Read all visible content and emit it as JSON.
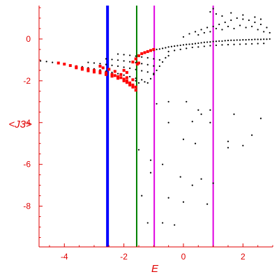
{
  "chart_data": {
    "type": "scatter",
    "title": "",
    "xlabel": "E",
    "ylabel": "<J3>",
    "xlim": [
      -4.85,
      3.0
    ],
    "ylim": [
      -9.95,
      1.6
    ],
    "x_ticks": [
      -4,
      -2,
      0,
      2
    ],
    "y_ticks": [
      0,
      -2,
      -4,
      -6,
      -8
    ],
    "x_tick_labels": [
      "-4",
      "-2",
      "0",
      "2"
    ],
    "y_tick_labels": [
      "0",
      "-2",
      "-4",
      "-6",
      "-8"
    ],
    "grid": false,
    "legend": "none",
    "colors": {
      "axis": "#e00000",
      "black_points": "#000000",
      "red_points": "#ff0000",
      "line_blue": "#0000ff",
      "line_green": "#008000",
      "line_magenta": "#e000e0"
    },
    "vertical_lines": [
      {
        "x": -2.55,
        "color": "blue"
      },
      {
        "x": -1.57,
        "color": "green"
      },
      {
        "x": -0.98,
        "color": "magenta"
      },
      {
        "x": 1.0,
        "color": "magenta"
      }
    ],
    "series": [
      {
        "color": "black",
        "points": [
          [
            -4.8,
            -1.05
          ],
          [
            -4.6,
            -1.08
          ],
          [
            -4.4,
            -1.12
          ],
          [
            -4.2,
            -1.16
          ],
          [
            -4.0,
            -1.2
          ],
          [
            -3.8,
            -1.24
          ],
          [
            -3.6,
            -1.29
          ],
          [
            -3.4,
            -1.33
          ],
          [
            -3.2,
            -1.38
          ],
          [
            -3.0,
            -1.43
          ],
          [
            -2.8,
            -1.48
          ],
          [
            -2.6,
            -1.54
          ],
          [
            -2.4,
            -1.6
          ],
          [
            -2.2,
            -1.66
          ],
          [
            -2.0,
            -1.73
          ],
          [
            -1.8,
            -1.8
          ],
          [
            -1.6,
            -1.88
          ],
          [
            -3.2,
            -1.12
          ],
          [
            -3.0,
            -1.15
          ],
          [
            -2.8,
            -1.18
          ],
          [
            -2.6,
            -1.22
          ],
          [
            -2.4,
            -1.26
          ],
          [
            -2.2,
            -1.3
          ],
          [
            -2.0,
            -1.35
          ],
          [
            -1.8,
            -1.4
          ],
          [
            -1.6,
            -1.46
          ],
          [
            -1.4,
            -1.52
          ],
          [
            -1.2,
            -1.58
          ],
          [
            -1.0,
            -1.65
          ],
          [
            -2.6,
            -0.95
          ],
          [
            -2.4,
            -0.98
          ],
          [
            -2.2,
            -1.01
          ],
          [
            -2.0,
            -1.05
          ],
          [
            -1.8,
            -1.09
          ],
          [
            -1.6,
            -1.13
          ],
          [
            -1.4,
            -1.18
          ],
          [
            -1.2,
            -1.23
          ],
          [
            -1.0,
            -1.29
          ],
          [
            -2.2,
            -0.72
          ],
          [
            -2.0,
            -0.75
          ],
          [
            -1.8,
            -0.78
          ],
          [
            -1.6,
            -0.82
          ],
          [
            -1.4,
            -0.86
          ],
          [
            -1.2,
            -0.9
          ],
          [
            -1.0,
            -0.95
          ],
          [
            -0.8,
            -1.0
          ],
          [
            -1.6,
            -2.0
          ],
          [
            -1.5,
            -2.1
          ],
          [
            -1.4,
            -1.95
          ],
          [
            -1.3,
            -2.05
          ],
          [
            -1.2,
            -2.1
          ],
          [
            -1.1,
            -1.9
          ],
          [
            -1.0,
            -1.7
          ],
          [
            -0.9,
            -1.5
          ],
          [
            -0.8,
            -1.3
          ],
          [
            -0.7,
            -1.1
          ],
          [
            -0.6,
            -0.9
          ],
          [
            -0.5,
            -0.8
          ],
          [
            -1.0,
            -0.55
          ],
          [
            -0.9,
            -0.5
          ],
          [
            -0.8,
            -0.48
          ],
          [
            -0.7,
            -0.45
          ],
          [
            -0.6,
            -0.42
          ],
          [
            -0.5,
            -0.38
          ],
          [
            -0.4,
            -0.36
          ],
          [
            -0.3,
            -0.34
          ],
          [
            -0.2,
            -0.32
          ],
          [
            -0.1,
            -0.3
          ],
          [
            0.0,
            -0.28
          ],
          [
            0.1,
            -0.26
          ],
          [
            0.2,
            -0.25
          ],
          [
            0.3,
            -0.24
          ],
          [
            0.4,
            -0.22
          ],
          [
            0.5,
            -0.2
          ],
          [
            0.6,
            -0.18
          ],
          [
            0.7,
            -0.16
          ],
          [
            0.8,
            -0.15
          ],
          [
            0.9,
            -0.14
          ],
          [
            1.0,
            -0.12
          ],
          [
            1.1,
            -0.11
          ],
          [
            1.2,
            -0.1
          ],
          [
            1.3,
            -0.1
          ],
          [
            1.4,
            -0.08
          ],
          [
            1.5,
            -0.07
          ],
          [
            1.6,
            -0.06
          ],
          [
            1.7,
            -0.06
          ],
          [
            1.8,
            -0.05
          ],
          [
            1.9,
            -0.05
          ],
          [
            2.0,
            -0.04
          ],
          [
            2.1,
            -0.04
          ],
          [
            2.2,
            -0.03
          ],
          [
            2.3,
            -0.03
          ],
          [
            2.4,
            -0.02
          ],
          [
            2.5,
            -0.02
          ],
          [
            2.6,
            -0.02
          ],
          [
            2.7,
            -0.01
          ],
          [
            2.8,
            -0.01
          ],
          [
            2.9,
            0.0
          ],
          [
            -0.5,
            -0.6
          ],
          [
            -0.3,
            -0.55
          ],
          [
            -0.1,
            -0.5
          ],
          [
            0.1,
            -0.45
          ],
          [
            0.3,
            -0.4
          ],
          [
            0.5,
            -0.38
          ],
          [
            0.7,
            -0.35
          ],
          [
            0.9,
            -0.32
          ],
          [
            1.1,
            -0.3
          ],
          [
            1.3,
            -0.28
          ],
          [
            1.5,
            -0.27
          ],
          [
            1.7,
            -0.26
          ],
          [
            1.9,
            -0.25
          ],
          [
            2.1,
            -0.24
          ],
          [
            2.3,
            -0.23
          ],
          [
            2.5,
            -0.22
          ],
          [
            2.7,
            -0.21
          ],
          [
            0.0,
            0.1
          ],
          [
            0.2,
            0.25
          ],
          [
            0.4,
            0.35
          ],
          [
            0.6,
            0.45
          ],
          [
            0.8,
            0.55
          ],
          [
            1.0,
            0.6
          ],
          [
            1.2,
            0.7
          ],
          [
            1.4,
            0.8
          ],
          [
            1.6,
            0.9
          ],
          [
            1.8,
            1.0
          ],
          [
            2.0,
            0.95
          ],
          [
            2.2,
            0.9
          ],
          [
            2.4,
            0.8
          ],
          [
            2.6,
            0.7
          ],
          [
            2.8,
            0.55
          ],
          [
            0.5,
            0.2
          ],
          [
            0.7,
            0.3
          ],
          [
            0.9,
            0.35
          ],
          [
            1.1,
            0.5
          ],
          [
            1.3,
            0.45
          ],
          [
            1.5,
            0.6
          ],
          [
            1.7,
            0.5
          ],
          [
            1.9,
            0.65
          ],
          [
            2.1,
            0.55
          ],
          [
            2.3,
            0.6
          ],
          [
            2.5,
            0.45
          ],
          [
            2.7,
            0.35
          ],
          [
            2.9,
            0.3
          ],
          [
            0.9,
            1.3
          ],
          [
            1.0,
            1.45
          ],
          [
            1.1,
            1.2
          ],
          [
            1.3,
            1.1
          ],
          [
            1.6,
            1.25
          ],
          [
            2.0,
            1.15
          ],
          [
            2.4,
            1.05
          ],
          [
            2.6,
            0.95
          ],
          [
            -0.9,
            -3.1
          ],
          [
            -0.5,
            -3.0
          ],
          [
            0.1,
            -3.0
          ],
          [
            0.5,
            -3.4
          ],
          [
            0.6,
            -3.6
          ],
          [
            0.9,
            -3.4
          ],
          [
            1.7,
            -3.6
          ],
          [
            2.6,
            -3.8
          ],
          [
            -0.5,
            -4.0
          ],
          [
            0.3,
            -3.95
          ],
          [
            0.9,
            -4.0
          ],
          [
            2.3,
            -4.6
          ],
          [
            1.5,
            -4.9
          ],
          [
            0.0,
            -4.8
          ],
          [
            0.4,
            -5.0
          ],
          [
            1.5,
            -5.2
          ],
          [
            2.0,
            -5.1
          ],
          [
            -1.1,
            -5.8
          ],
          [
            -0.7,
            -6.0
          ],
          [
            -1.5,
            -5.3
          ],
          [
            -1.1,
            -6.4
          ],
          [
            -0.1,
            -6.6
          ],
          [
            0.6,
            -6.7
          ],
          [
            1.0,
            -6.9
          ],
          [
            0.3,
            -7.0
          ],
          [
            -0.5,
            -7.6
          ],
          [
            -1.4,
            -7.5
          ],
          [
            0.0,
            -7.8
          ],
          [
            0.8,
            -7.9
          ],
          [
            -1.2,
            -8.8
          ],
          [
            -0.7,
            -8.8
          ],
          [
            -0.3,
            -8.9
          ]
        ]
      },
      {
        "color": "red",
        "points": [
          [
            -4.2,
            -1.15
          ],
          [
            -4.0,
            -1.2
          ],
          [
            -3.8,
            -1.27
          ],
          [
            -3.6,
            -1.33
          ],
          [
            -3.4,
            -1.4
          ],
          [
            -3.2,
            -1.45
          ],
          [
            -3.0,
            -1.5
          ],
          [
            -2.8,
            -1.56
          ],
          [
            -2.6,
            -1.62
          ],
          [
            -2.4,
            -1.7
          ],
          [
            -2.3,
            -1.75
          ],
          [
            -2.2,
            -1.8
          ],
          [
            -2.1,
            -1.85
          ],
          [
            -2.0,
            -1.92
          ],
          [
            -1.9,
            -2.0
          ],
          [
            -1.8,
            -2.1
          ],
          [
            -1.7,
            -2.2
          ],
          [
            -1.6,
            -2.3
          ],
          [
            -3.6,
            -1.38
          ],
          [
            -3.4,
            -1.45
          ],
          [
            -3.2,
            -1.52
          ],
          [
            -3.0,
            -1.58
          ],
          [
            -2.8,
            -1.62
          ],
          [
            -2.6,
            -1.7
          ],
          [
            -2.4,
            -1.78
          ],
          [
            -2.2,
            -1.88
          ],
          [
            -2.0,
            -2.0
          ],
          [
            -1.9,
            -2.08
          ],
          [
            -1.8,
            -2.2
          ],
          [
            -1.7,
            -2.3
          ],
          [
            -1.6,
            -2.45
          ],
          [
            -2.8,
            -1.3
          ],
          [
            -2.7,
            -1.38
          ],
          [
            -2.5,
            -1.45
          ],
          [
            -2.3,
            -1.55
          ],
          [
            -2.1,
            -1.7
          ],
          [
            -1.9,
            -1.85
          ],
          [
            -1.7,
            -1.95
          ],
          [
            -2.0,
            -1.5
          ],
          [
            -1.9,
            -1.6
          ],
          [
            -1.7,
            -1.1
          ],
          [
            -1.6,
            -0.95
          ],
          [
            -1.5,
            -0.8
          ],
          [
            -1.4,
            -0.7
          ],
          [
            -1.3,
            -0.65
          ],
          [
            -1.2,
            -0.6
          ],
          [
            -1.1,
            -0.55
          ],
          [
            -1.0,
            -0.5
          ],
          [
            -1.5,
            -1.15
          ],
          [
            -1.55,
            -1.2
          ]
        ]
      }
    ]
  }
}
